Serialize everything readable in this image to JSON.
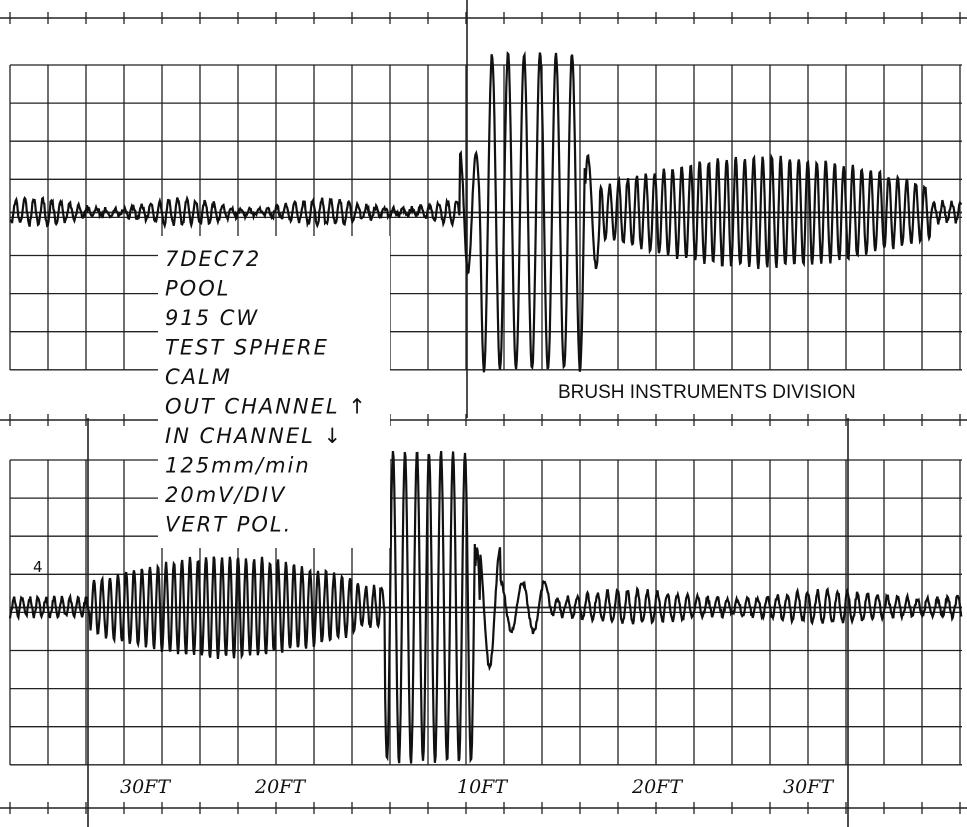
{
  "notes": [
    "7DEC72",
    "POOL",
    "915 CW",
    "TEST SPHERE",
    "CALM",
    "OUT CHANNEL ↑",
    "IN CHANNEL ↓",
    "125mm/min",
    "20mV/DIV",
    "VERT POL."
  ],
  "brand": "BRUSH INSTRUMENTS DIVISION",
  "trace_marker": "4",
  "distance_labels": [
    "30FT",
    "20FT",
    "10FT",
    "20FT",
    "30FT"
  ]
}
